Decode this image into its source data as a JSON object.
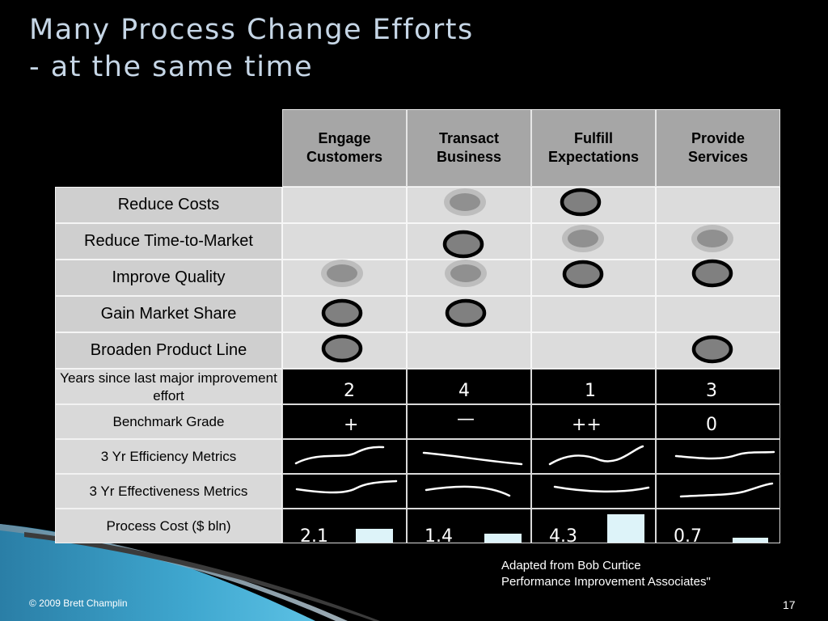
{
  "slide": {
    "title_line1": "Many Process Change Efforts",
    "title_line2": "- at the same time",
    "attribution_line1": "Adapted from Bob Curtice",
    "attribution_line2": "Performance Improvement Associates\"",
    "copyright": "© 2009 Brett Champlin",
    "page_number": "17"
  },
  "matrix": {
    "columns": [
      "Engage\nCustomers",
      "Transact\nBusiness",
      "Fulfill\nExpectations",
      "Provide\nServices"
    ],
    "rows": [
      "Reduce Costs",
      "Reduce Time-to-Market",
      "Improve Quality",
      "Gain Market Share",
      "Broaden Product Line"
    ],
    "marks": [
      [
        null,
        "light",
        "strong",
        null
      ],
      [
        null,
        "strong",
        "light",
        "light"
      ],
      [
        "light",
        "light",
        "strong",
        "strong"
      ],
      [
        "strong",
        "strong",
        null,
        null
      ],
      [
        "strong",
        null,
        null,
        "strong"
      ]
    ]
  },
  "metrics": {
    "rows": [
      "Years since last major improvement effort",
      "Benchmark Grade",
      "3 Yr Efficiency Metrics",
      "3 Yr Effectiveness Metrics",
      "Process Cost ($ bln)"
    ],
    "years": [
      "2",
      "4",
      "1",
      "3"
    ],
    "grades": [
      "+",
      "—",
      "++",
      "0"
    ],
    "costs": [
      "2.1",
      "1.4",
      "4.3",
      "0.7"
    ],
    "cost_values": [
      2.1,
      1.4,
      4.3,
      0.7
    ]
  }
}
